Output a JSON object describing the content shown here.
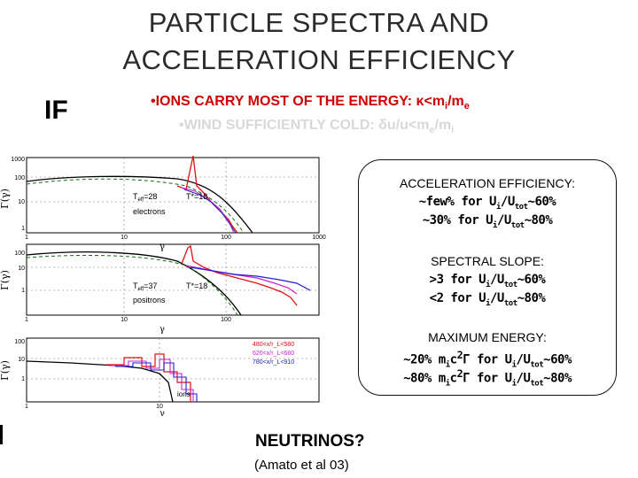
{
  "title": {
    "line1": "PARTICLE SPECTRA AND",
    "line2": "ACCELERATION EFFICIENCY"
  },
  "if_label": "IF",
  "bullets": {
    "b1_prefix": "•IONS CARRY MOST OF THE ENERGY: ",
    "b1_kappa": "κ",
    "b1_rest": "<m",
    "b1_sub1": "i",
    "b1_slash": "/m",
    "b1_sub2": "e",
    "b2_prefix": "•WIND SUFFICIENTLY COLD: ",
    "b2_delta": "δ",
    "b2_rest": "u/u<m",
    "b2_sub1": "e",
    "b2_slash": "/m",
    "b2_sub2": "i"
  },
  "callout": {
    "acc_head": "ACCELERATION EFFICIENCY:",
    "acc_l1": "~few% for U",
    "acc_l1_sub": "i",
    "acc_l1_mid": "/U",
    "acc_l1_sub2": "tot",
    "acc_l1_end": "~60%",
    "acc_l2": "~30% for U",
    "acc_l2_sub": "i",
    "acc_l2_mid": "/U",
    "acc_l2_sub2": "tot",
    "acc_l2_end": "~80%",
    "slope_head": "SPECTRAL SLOPE:",
    "slope_l1": ">3 for U",
    "slope_l1_sub": "i",
    "slope_l1_mid": "/U",
    "slope_l1_sub2": "tot",
    "slope_l1_end": "~60%",
    "slope_l2": "<2 for U",
    "slope_l2_sub": "i",
    "slope_l2_mid": "/U",
    "slope_l2_sub2": "tot",
    "slope_l2_end": "~80%",
    "max_head": "MAXIMUM ENERGY:",
    "max_l1": "~20% m",
    "max_l1_sub": "i",
    "max_l1_mid": "c",
    "max_l1_sup": "2",
    "max_l1_g": "Γ for U",
    "max_l1_sub2": "i",
    "max_l1_mid2": "/U",
    "max_l1_sub3": "tot",
    "max_l1_end": "~60%",
    "max_l2": "~80% m",
    "max_l2_sub": "i",
    "max_l2_mid": "c",
    "max_l2_sup": "2",
    "max_l2_g": "Γ for U",
    "max_l2_sub2": "i",
    "max_l2_mid2": "/U",
    "max_l2_sub3": "tot",
    "max_l2_end": "~80%"
  },
  "neutrinos": "NEUTRINOS?",
  "citation": "(Amato et al 03)",
  "panels": [
    {
      "ylabel": "Γ(γ)",
      "yticks": [
        "1000",
        "100",
        "10",
        "1"
      ],
      "xticks": [
        "1",
        "10",
        "100",
        "1000"
      ],
      "tlabel_a": "T",
      "tlabel_a_sub": "eff",
      "tlabel_a_val": "=28",
      "tlabel_b": "T*=18",
      "species": "electrons",
      "xlabel": "γ"
    },
    {
      "ylabel": "Γ(γ)",
      "yticks": [
        "100",
        "10",
        "1"
      ],
      "xticks": [
        "1",
        "10",
        "100"
      ],
      "tlabel_a": "T",
      "tlabel_a_sub": "eff",
      "tlabel_a_val": "=37",
      "tlabel_b": "T*=18",
      "species": "positrons",
      "xlabel": "γ"
    },
    {
      "ylabel": "Γ(γ)",
      "yticks": [
        "100",
        "10",
        "1"
      ],
      "xticks": [
        "1",
        "10"
      ],
      "species": "ions",
      "xlabel": "γ",
      "legend": [
        "480<x/r_L<580",
        "620<x/r_L<680",
        "780<x/r_L<910"
      ]
    }
  ],
  "colors": {
    "title": "#2b2b2b",
    "bullet1": "#d00000",
    "bullet2": "#d8d8d8",
    "red": "#e01010",
    "magenta": "#d020d0",
    "blue": "#2020d0",
    "green": "#107010"
  }
}
